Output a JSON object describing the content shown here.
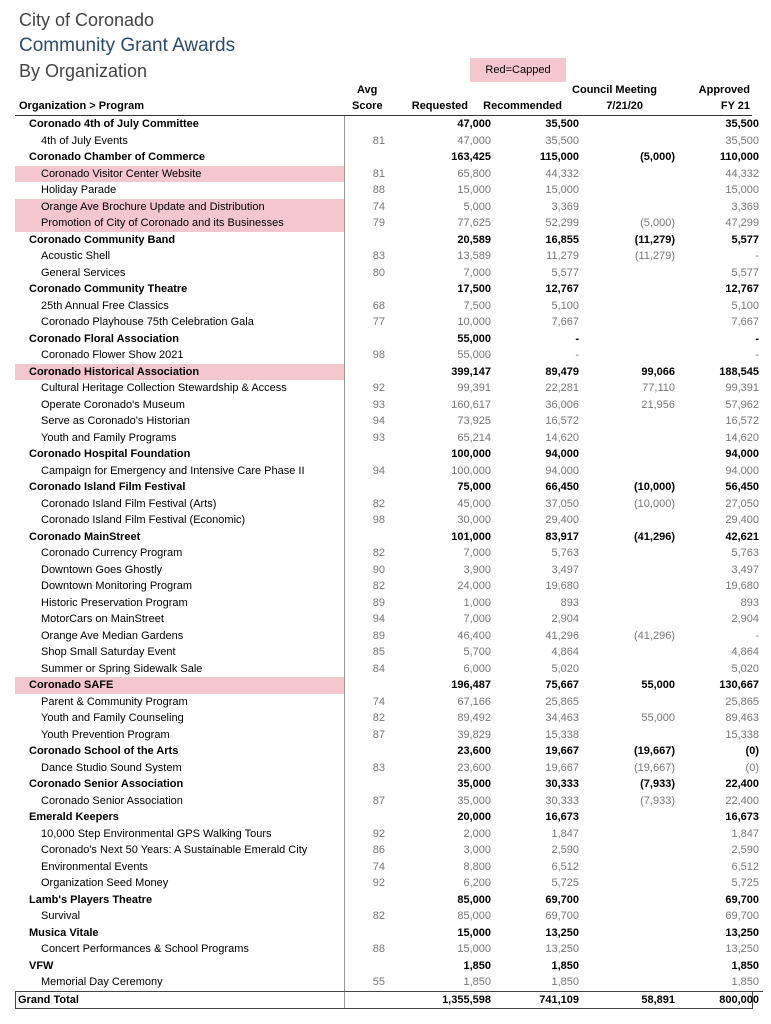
{
  "header": {
    "line1": "City of Coronado",
    "line2": "Community Grant Awards",
    "line3": "By Organization",
    "legend": "Red=Capped"
  },
  "columns": {
    "org_program": "Organization > Program",
    "avg_top": "Avg",
    "avg_bottom": "Score",
    "requested": "Requested",
    "recommended": "Recommended",
    "council_top": "Council Meeting",
    "council_bottom": "7/21/20",
    "approved_top": "Approved",
    "approved_bottom": "FY 21"
  },
  "rows": [
    {
      "type": "org",
      "name": "Coronado 4th of July Committee",
      "score": "",
      "requested": "47,000",
      "recommended": "35,500",
      "council": "",
      "approved": "35,500",
      "capped": false
    },
    {
      "type": "prog",
      "name": "4th of July Events",
      "score": "81",
      "requested": "47,000",
      "recommended": "35,500",
      "council": "",
      "approved": "35,500",
      "capped": false
    },
    {
      "type": "org",
      "name": "Coronado Chamber of Commerce",
      "score": "",
      "requested": "163,425",
      "recommended": "115,000",
      "council": "(5,000)",
      "approved": "110,000",
      "capped": false
    },
    {
      "type": "prog",
      "name": "Coronado Visitor Center Website",
      "score": "81",
      "requested": "65,800",
      "recommended": "44,332",
      "council": "",
      "approved": "44,332",
      "capped": true
    },
    {
      "type": "prog",
      "name": "Holiday Parade",
      "score": "88",
      "requested": "15,000",
      "recommended": "15,000",
      "council": "",
      "approved": "15,000",
      "capped": false
    },
    {
      "type": "prog",
      "name": "Orange Ave Brochure Update and Distribution",
      "score": "74",
      "requested": "5,000",
      "recommended": "3,369",
      "council": "",
      "approved": "3,369",
      "capped": true
    },
    {
      "type": "prog",
      "name": "Promotion of City of Coronado and its Businesses",
      "score": "79",
      "requested": "77,625",
      "recommended": "52,299",
      "council": "(5,000)",
      "approved": "47,299",
      "capped": true
    },
    {
      "type": "org",
      "name": "Coronado Community Band",
      "score": "",
      "requested": "20,589",
      "recommended": "16,855",
      "council": "(11,279)",
      "approved": "5,577",
      "capped": false
    },
    {
      "type": "prog",
      "name": "Acoustic Shell",
      "score": "83",
      "requested": "13,589",
      "recommended": "11,279",
      "council": "(11,279)",
      "approved": "-",
      "capped": false
    },
    {
      "type": "prog",
      "name": "General Services",
      "score": "80",
      "requested": "7,000",
      "recommended": "5,577",
      "council": "",
      "approved": "5,577",
      "capped": false
    },
    {
      "type": "org",
      "name": "Coronado Community Theatre",
      "score": "",
      "requested": "17,500",
      "recommended": "12,767",
      "council": "",
      "approved": "12,767",
      "capped": false
    },
    {
      "type": "prog",
      "name": "25th Annual Free Classics",
      "score": "68",
      "requested": "7,500",
      "recommended": "5,100",
      "council": "",
      "approved": "5,100",
      "capped": false
    },
    {
      "type": "prog",
      "name": "Coronado Playhouse 75th Celebration Gala",
      "score": "77",
      "requested": "10,000",
      "recommended": "7,667",
      "council": "",
      "approved": "7,667",
      "capped": false
    },
    {
      "type": "org",
      "name": "Coronado Floral Association",
      "score": "",
      "requested": "55,000",
      "recommended": "-",
      "council": "",
      "approved": "-",
      "capped": false
    },
    {
      "type": "prog",
      "name": "Coronado Flower Show 2021",
      "score": "98",
      "requested": "55,000",
      "recommended": "-",
      "council": "",
      "approved": "-",
      "capped": false
    },
    {
      "type": "org",
      "name": "Coronado Historical Association",
      "score": "",
      "requested": "399,147",
      "recommended": "89,479",
      "council": "99,066",
      "approved": "188,545",
      "capped": true
    },
    {
      "type": "prog",
      "name": "Cultural Heritage Collection Stewardship & Access",
      "score": "92",
      "requested": "99,391",
      "recommended": "22,281",
      "council": "77,110",
      "approved": "99,391",
      "capped": false
    },
    {
      "type": "prog",
      "name": "Operate Coronado's Museum",
      "score": "93",
      "requested": "160,617",
      "recommended": "36,006",
      "council": "21,956",
      "approved": "57,962",
      "capped": false
    },
    {
      "type": "prog",
      "name": "Serve as Coronado's Historian",
      "score": "94",
      "requested": "73,925",
      "recommended": "16,572",
      "council": "",
      "approved": "16,572",
      "capped": false
    },
    {
      "type": "prog",
      "name": "Youth and Family Programs",
      "score": "93",
      "requested": "65,214",
      "recommended": "14,620",
      "council": "",
      "approved": "14,620",
      "capped": false
    },
    {
      "type": "org",
      "name": "Coronado Hospital Foundation",
      "score": "",
      "requested": "100,000",
      "recommended": "94,000",
      "council": "",
      "approved": "94,000",
      "capped": false
    },
    {
      "type": "prog",
      "name": "Campaign for Emergency and Intensive Care Phase II",
      "score": "94",
      "requested": "100,000",
      "recommended": "94,000",
      "council": "",
      "approved": "94,000",
      "capped": false
    },
    {
      "type": "org",
      "name": "Coronado Island Film Festival",
      "score": "",
      "requested": "75,000",
      "recommended": "66,450",
      "council": "(10,000)",
      "approved": "56,450",
      "capped": false
    },
    {
      "type": "prog",
      "name": "Coronado Island Film Festival (Arts)",
      "score": "82",
      "requested": "45,000",
      "recommended": "37,050",
      "council": "(10,000)",
      "approved": "27,050",
      "capped": false
    },
    {
      "type": "prog",
      "name": "Coronado Island Film Festival (Economic)",
      "score": "98",
      "requested": "30,000",
      "recommended": "29,400",
      "council": "",
      "approved": "29,400",
      "capped": false
    },
    {
      "type": "org",
      "name": "Coronado MainStreet",
      "score": "",
      "requested": "101,000",
      "recommended": "83,917",
      "council": "(41,296)",
      "approved": "42,621",
      "capped": false
    },
    {
      "type": "prog",
      "name": "Coronado Currency Program",
      "score": "82",
      "requested": "7,000",
      "recommended": "5,763",
      "council": "",
      "approved": "5,763",
      "capped": false
    },
    {
      "type": "prog",
      "name": "Downtown Goes Ghostly",
      "score": "90",
      "requested": "3,900",
      "recommended": "3,497",
      "council": "",
      "approved": "3,497",
      "capped": false
    },
    {
      "type": "prog",
      "name": "Downtown Monitoring Program",
      "score": "82",
      "requested": "24,000",
      "recommended": "19,680",
      "council": "",
      "approved": "19,680",
      "capped": false
    },
    {
      "type": "prog",
      "name": "Historic Preservation Program",
      "score": "89",
      "requested": "1,000",
      "recommended": "893",
      "council": "",
      "approved": "893",
      "capped": false
    },
    {
      "type": "prog",
      "name": "MotorCars on MainStreet",
      "score": "94",
      "requested": "7,000",
      "recommended": "2,904",
      "council": "",
      "approved": "2,904",
      "capped": false
    },
    {
      "type": "prog",
      "name": "Orange Ave Median Gardens",
      "score": "89",
      "requested": "46,400",
      "recommended": "41,296",
      "council": "(41,296)",
      "approved": "-",
      "capped": false
    },
    {
      "type": "prog",
      "name": "Shop Small Saturday Event",
      "score": "85",
      "requested": "5,700",
      "recommended": "4,864",
      "council": "",
      "approved": "4,864",
      "capped": false
    },
    {
      "type": "prog",
      "name": "Summer or Spring Sidewalk Sale",
      "score": "84",
      "requested": "6,000",
      "recommended": "5,020",
      "council": "",
      "approved": "5,020",
      "capped": false
    },
    {
      "type": "org",
      "name": "Coronado SAFE",
      "score": "",
      "requested": "196,487",
      "recommended": "75,667",
      "council": "55,000",
      "approved": "130,667",
      "capped": true
    },
    {
      "type": "prog",
      "name": "Parent & Community Program",
      "score": "74",
      "requested": "67,166",
      "recommended": "25,865",
      "council": "",
      "approved": "25,865",
      "capped": false
    },
    {
      "type": "prog",
      "name": "Youth and Family Counseling",
      "score": "82",
      "requested": "89,492",
      "recommended": "34,463",
      "council": "55,000",
      "approved": "89,463",
      "capped": false
    },
    {
      "type": "prog",
      "name": "Youth Prevention Program",
      "score": "87",
      "requested": "39,829",
      "recommended": "15,338",
      "council": "",
      "approved": "15,338",
      "capped": false
    },
    {
      "type": "org",
      "name": "Coronado School of the Arts",
      "score": "",
      "requested": "23,600",
      "recommended": "19,667",
      "council": "(19,667)",
      "approved": "(0)",
      "capped": false
    },
    {
      "type": "prog",
      "name": "Dance Studio Sound System",
      "score": "83",
      "requested": "23,600",
      "recommended": "19,667",
      "council": "(19,667)",
      "approved": "(0)",
      "capped": false
    },
    {
      "type": "org",
      "name": "Coronado Senior Association",
      "score": "",
      "requested": "35,000",
      "recommended": "30,333",
      "council": "(7,933)",
      "approved": "22,400",
      "capped": false
    },
    {
      "type": "prog",
      "name": "Coronado Senior Association",
      "score": "87",
      "requested": "35,000",
      "recommended": "30,333",
      "council": "(7,933)",
      "approved": "22,400",
      "capped": false
    },
    {
      "type": "org",
      "name": "Emerald Keepers",
      "score": "",
      "requested": "20,000",
      "recommended": "16,673",
      "council": "",
      "approved": "16,673",
      "capped": false
    },
    {
      "type": "prog",
      "name": "10,000 Step Environmental GPS Walking Tours",
      "score": "92",
      "requested": "2,000",
      "recommended": "1,847",
      "council": "",
      "approved": "1,847",
      "capped": false
    },
    {
      "type": "prog",
      "name": "Coronado's Next 50 Years: A Sustainable Emerald City",
      "score": "86",
      "requested": "3,000",
      "recommended": "2,590",
      "council": "",
      "approved": "2,590",
      "capped": false
    },
    {
      "type": "prog",
      "name": "Environmental Events",
      "score": "74",
      "requested": "8,800",
      "recommended": "6,512",
      "council": "",
      "approved": "6,512",
      "capped": false
    },
    {
      "type": "prog",
      "name": "Organization Seed Money",
      "score": "92",
      "requested": "6,200",
      "recommended": "5,725",
      "council": "",
      "approved": "5,725",
      "capped": false
    },
    {
      "type": "org",
      "name": "Lamb's Players Theatre",
      "score": "",
      "requested": "85,000",
      "recommended": "69,700",
      "council": "",
      "approved": "69,700",
      "capped": false
    },
    {
      "type": "prog",
      "name": "Survival",
      "score": "82",
      "requested": "85,000",
      "recommended": "69,700",
      "council": "",
      "approved": "69,700",
      "capped": false
    },
    {
      "type": "org",
      "name": "Musica Vitale",
      "score": "",
      "requested": "15,000",
      "recommended": "13,250",
      "council": "",
      "approved": "13,250",
      "capped": false
    },
    {
      "type": "prog",
      "name": "Concert Performances & School Programs",
      "score": "88",
      "requested": "15,000",
      "recommended": "13,250",
      "council": "",
      "approved": "13,250",
      "capped": false
    },
    {
      "type": "org",
      "name": "VFW",
      "score": "",
      "requested": "1,850",
      "recommended": "1,850",
      "council": "",
      "approved": "1,850",
      "capped": false
    },
    {
      "type": "prog",
      "name": "Memorial Day Ceremony",
      "score": "55",
      "requested": "1,850",
      "recommended": "1,850",
      "council": "",
      "approved": "1,850",
      "capped": false
    },
    {
      "type": "grand",
      "name": "Grand Total",
      "score": "",
      "requested": "1,355,598",
      "recommended": "741,109",
      "council": "58,891",
      "approved": "800,000",
      "capped": false
    }
  ],
  "colors": {
    "capped": "#f4c7cf",
    "title_accent": "#2e4b6b"
  }
}
